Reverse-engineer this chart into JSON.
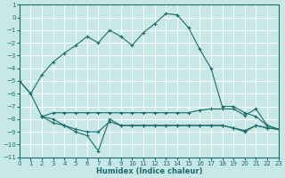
{
  "background_color": "#c8e8e8",
  "grid_color": "#ffffff",
  "line_color": "#1a6b6b",
  "xlabel": "Humidex (Indice chaleur)",
  "xlim": [
    0,
    23
  ],
  "ylim": [
    -11,
    1
  ],
  "yticks": [
    1,
    0,
    -1,
    -2,
    -3,
    -4,
    -5,
    -6,
    -7,
    -8,
    -9,
    -10,
    -11
  ],
  "xticks": [
    0,
    1,
    2,
    3,
    4,
    5,
    6,
    7,
    8,
    9,
    10,
    11,
    12,
    13,
    14,
    15,
    16,
    17,
    18,
    19,
    20,
    21,
    22,
    23
  ],
  "series": [
    {
      "x": [
        0,
        1,
        2,
        3,
        4,
        5,
        6,
        7,
        8,
        9,
        10,
        11,
        12,
        13,
        14,
        15,
        16,
        17,
        18,
        19,
        20,
        21,
        22,
        23
      ],
      "y": [
        -5.0,
        -6.0,
        -4.5,
        -3.5,
        -2.8,
        -2.2,
        -1.5,
        -2.0,
        -1.0,
        -1.5,
        -2.2,
        -1.2,
        -0.5,
        0.3,
        0.2,
        -0.8,
        -2.5,
        -4.0,
        -7.0,
        -7.0,
        -7.5,
        -7.8,
        -8.5,
        -8.8
      ]
    },
    {
      "x": [
        2,
        3,
        4,
        5,
        6,
        7,
        8,
        9,
        10,
        11,
        12,
        13,
        14,
        15,
        16,
        17,
        18,
        19,
        20,
        21,
        22,
        23
      ],
      "y": [
        -7.8,
        -7.5,
        -7.5,
        -7.5,
        -7.5,
        -7.5,
        -7.5,
        -7.5,
        -7.5,
        -7.5,
        -7.5,
        -7.5,
        -7.5,
        -7.5,
        -7.3,
        -7.2,
        -7.2,
        -7.2,
        -7.7,
        -7.2,
        -8.5,
        -8.8
      ]
    },
    {
      "x": [
        0,
        1,
        2,
        3,
        4,
        5,
        6,
        7,
        8,
        9,
        10,
        11,
        12,
        13,
        14,
        15,
        16,
        17,
        18,
        19,
        20,
        21,
        22,
        23
      ],
      "y": [
        -5.0,
        -6.0,
        -7.8,
        -8.0,
        -8.5,
        -9.0,
        -9.3,
        -10.5,
        -8.0,
        -8.5,
        -8.5,
        -8.5,
        -8.5,
        -8.5,
        -8.5,
        -8.5,
        -8.5,
        -8.5,
        -8.5,
        -8.7,
        -8.9,
        -8.5,
        -8.7,
        -8.8
      ]
    },
    {
      "x": [
        2,
        3,
        4,
        5,
        6,
        7,
        8,
        9,
        10,
        11,
        12,
        13,
        14,
        15,
        16,
        17,
        18,
        19,
        20,
        21,
        22,
        23
      ],
      "y": [
        -7.8,
        -8.3,
        -8.5,
        -8.8,
        -9.0,
        -9.0,
        -8.2,
        -8.5,
        -8.5,
        -8.5,
        -8.5,
        -8.5,
        -8.5,
        -8.5,
        -8.5,
        -8.5,
        -8.5,
        -8.7,
        -9.0,
        -8.5,
        -8.7,
        -8.8
      ]
    }
  ]
}
